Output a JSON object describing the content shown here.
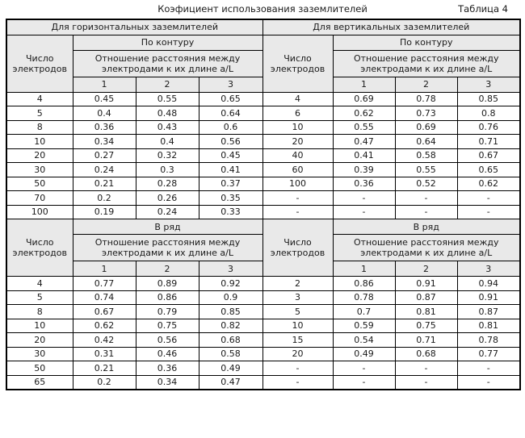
{
  "page": {
    "title": "Коэфициент использования заземлителей",
    "table_label": "Таблица 4"
  },
  "colors": {
    "header_bg": "#e9e9e9",
    "border": "#000000",
    "text": "#1a1a1a"
  },
  "table": {
    "halves": [
      {
        "id": "horizontal",
        "title": "Для горизонтальных заземлителей"
      },
      {
        "id": "vertical",
        "title": "Для вертикальных заземлителей"
      }
    ],
    "electrodes_header_lines": [
      "Число",
      "электродов"
    ],
    "ratio_header_lines": [
      "Отношение расстояния между",
      "электродами к их длине a/L"
    ],
    "subcols": [
      "1",
      "2",
      "3"
    ],
    "sections": [
      {
        "arrangement": "По контуру",
        "left_rows": [
          [
            "4",
            "0.45",
            "0.55",
            "0.65"
          ],
          [
            "5",
            "0.4",
            "0.48",
            "0.64"
          ],
          [
            "8",
            "0.36",
            "0.43",
            "0.6"
          ],
          [
            "10",
            "0.34",
            "0.4",
            "0.56"
          ],
          [
            "20",
            "0.27",
            "0.32",
            "0.45"
          ],
          [
            "30",
            "0.24",
            "0.3",
            "0.41"
          ],
          [
            "50",
            "0.21",
            "0.28",
            "0.37"
          ],
          [
            "70",
            "0.2",
            "0.26",
            "0.35"
          ],
          [
            "100",
            "0.19",
            "0.24",
            "0.33"
          ]
        ],
        "right_rows": [
          [
            "4",
            "0.69",
            "0.78",
            "0.85"
          ],
          [
            "6",
            "0.62",
            "0.73",
            "0.8"
          ],
          [
            "10",
            "0.55",
            "0.69",
            "0.76"
          ],
          [
            "20",
            "0.47",
            "0.64",
            "0.71"
          ],
          [
            "40",
            "0.41",
            "0.58",
            "0.67"
          ],
          [
            "60",
            "0.39",
            "0.55",
            "0.65"
          ],
          [
            "100",
            "0.36",
            "0.52",
            "0.62"
          ],
          [
            "-",
            "-",
            "-",
            "-"
          ],
          [
            "-",
            "-",
            "-",
            "-"
          ]
        ]
      },
      {
        "arrangement": "В ряд",
        "left_rows": [
          [
            "4",
            "0.77",
            "0.89",
            "0.92"
          ],
          [
            "5",
            "0.74",
            "0.86",
            "0.9"
          ],
          [
            "8",
            "0.67",
            "0.79",
            "0.85"
          ],
          [
            "10",
            "0.62",
            "0.75",
            "0.82"
          ],
          [
            "20",
            "0.42",
            "0.56",
            "0.68"
          ],
          [
            "30",
            "0.31",
            "0.46",
            "0.58"
          ],
          [
            "50",
            "0.21",
            "0.36",
            "0.49"
          ],
          [
            "65",
            "0.2",
            "0.34",
            "0.47"
          ]
        ],
        "right_rows": [
          [
            "2",
            "0.86",
            "0.91",
            "0.94"
          ],
          [
            "3",
            "0.78",
            "0.87",
            "0.91"
          ],
          [
            "5",
            "0.7",
            "0.81",
            "0.87"
          ],
          [
            "10",
            "0.59",
            "0.75",
            "0.81"
          ],
          [
            "15",
            "0.54",
            "0.71",
            "0.78"
          ],
          [
            "20",
            "0.49",
            "0.68",
            "0.77"
          ],
          [
            "-",
            "-",
            "-",
            "-"
          ],
          [
            "-",
            "-",
            "-",
            "-"
          ]
        ]
      }
    ]
  }
}
